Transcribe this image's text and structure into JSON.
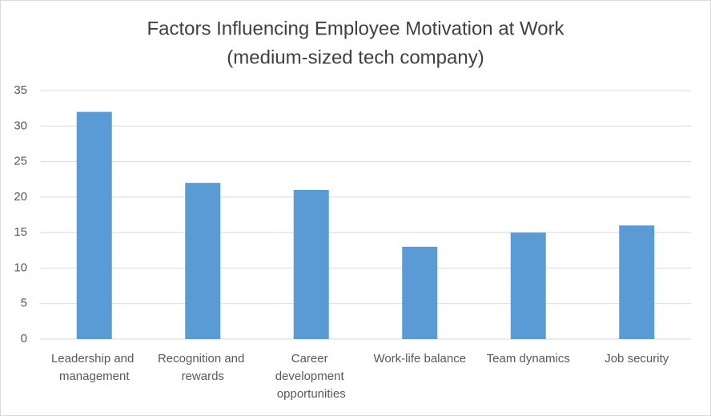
{
  "chart_data": {
    "type": "bar",
    "title": "Factors Influencing Employee Motivation at Work",
    "subtitle": "(medium-sized tech company)",
    "categories": [
      "Leadership and management",
      "Recognition and rewards",
      "Career development opportunities",
      "Work-life balance",
      "Team dynamics",
      "Job security"
    ],
    "values": [
      32,
      22,
      21,
      13,
      15,
      16
    ],
    "color": "#5b9bd5",
    "ylim": [
      0,
      35
    ],
    "yticks": [
      0,
      5,
      10,
      15,
      20,
      25,
      30,
      35
    ],
    "grid": true
  }
}
